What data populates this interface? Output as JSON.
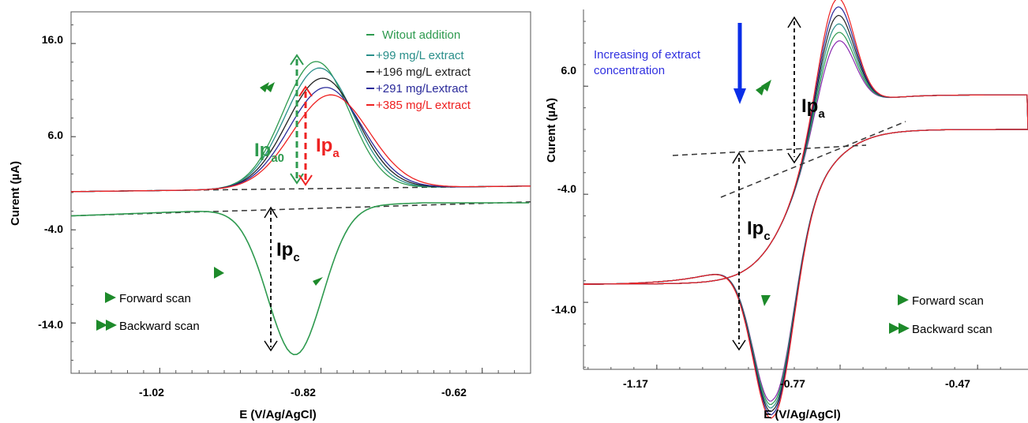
{
  "chart_data": [
    {
      "type": "line",
      "xlabel": "E (V/Ag/AgCl)",
      "ylabel": "Curent (µA)",
      "xlim": [
        -1.13,
        -0.56
      ],
      "ylim": [
        -19.4,
        19.4
      ],
      "x_ticks": [
        "-1.02",
        "-0.82",
        "-0.62"
      ],
      "y_ticks": [
        "16.0",
        "6.0",
        "-4.0",
        "-14.0"
      ],
      "series": [
        {
          "name": "Witout addition",
          "color": "#2e9a4f",
          "peak": 14.1
        },
        {
          "name": "+99 mg/L extract",
          "color": "#2a8f8a",
          "peak": 13.4
        },
        {
          "name": "+196 mg/L extract",
          "color": "#222222",
          "peak": 12.3
        },
        {
          "name": "+291 mg/Lextract",
          "color": "#2a2a9a",
          "peak": 11.3
        },
        {
          "name": "+385 mg/L extract",
          "color": "#ee2222",
          "peak": 10.5
        }
      ],
      "annotations": {
        "ipa0": {
          "main": "Ip",
          "sub": "a0"
        },
        "ipa": {
          "main": "Ip",
          "sub": "a"
        },
        "ipc": {
          "main": "Ip",
          "sub": "c"
        },
        "forward": "Forward scan",
        "backward": "Backward scan"
      }
    },
    {
      "type": "line",
      "xlabel": "E (V/Ag/AgCl)",
      "ylabel": "Curent (µA)",
      "xlim": [
        -1.33,
        -0.36
      ],
      "ylim": [
        -20.2,
        13.1
      ],
      "x_ticks": [
        "-1.17",
        "-0.77",
        "-0.47"
      ],
      "y_ticks": [
        "6.0",
        "-4.0",
        "-14.0"
      ],
      "series_colors": [
        "#ee2222",
        "#2a2a9a",
        "#222222",
        "#2a8f8a",
        "#2e9a4f",
        "#8a2ab0"
      ],
      "annotations": {
        "increasing": "Increasing of extract concentration",
        "ipa": {
          "main": "Ip",
          "sub": "a"
        },
        "ipc": {
          "main": "Ip",
          "sub": "c"
        },
        "forward": "Forward scan",
        "backward": "Backward scan"
      }
    }
  ]
}
